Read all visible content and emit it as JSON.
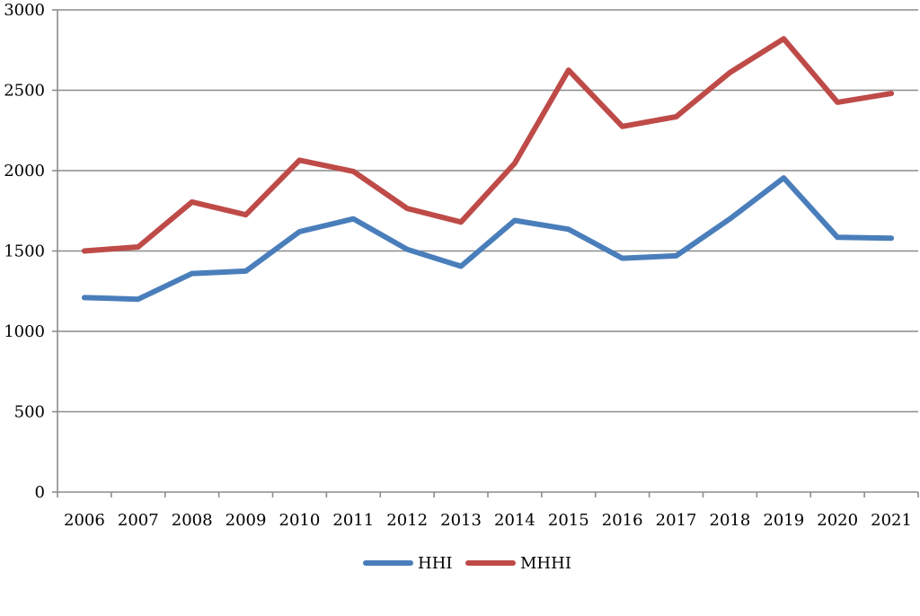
{
  "chart_data": {
    "type": "line",
    "title": "",
    "xlabel": "",
    "ylabel": "",
    "categories": [
      "2006",
      "2007",
      "2008",
      "2009",
      "2010",
      "2011",
      "2012",
      "2013",
      "2014",
      "2015",
      "2016",
      "2017",
      "2018",
      "2019",
      "2020",
      "2021"
    ],
    "ylim": [
      0,
      3000
    ],
    "yticks": [
      0,
      500,
      1000,
      1500,
      2000,
      2500,
      3000
    ],
    "ytick_labels": [
      "0",
      "500",
      "1000",
      "1500",
      "2000",
      "2500",
      "3000"
    ],
    "grid": "horizontal",
    "legend_position": "bottom",
    "series": [
      {
        "name": "HHI",
        "color": "#4a7ebb",
        "values": [
          1210,
          1200,
          1360,
          1375,
          1620,
          1700,
          1510,
          1405,
          1690,
          1635,
          1455,
          1470,
          1700,
          1955,
          1585,
          1580
        ]
      },
      {
        "name": "MHHI",
        "color": "#be4b48",
        "values": [
          1500,
          1525,
          1805,
          1725,
          2065,
          1995,
          1765,
          1680,
          2045,
          2625,
          2275,
          2335,
          2610,
          2820,
          2425,
          2480
        ]
      }
    ]
  }
}
